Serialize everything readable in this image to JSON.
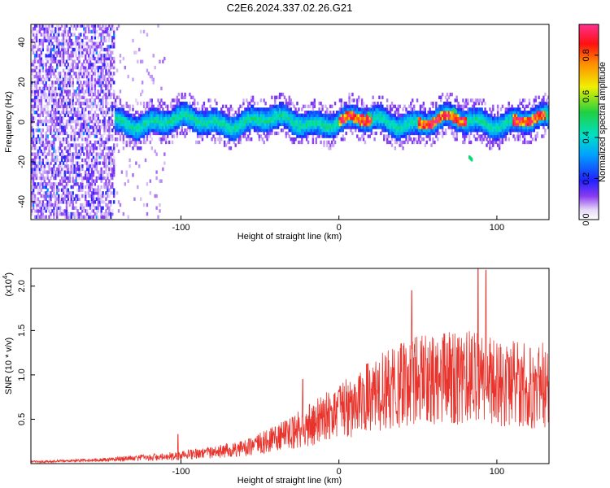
{
  "title": "C2E6.2024.337.02.26.G21",
  "chart_data": [
    {
      "type": "heatmap",
      "xlabel": "Height of straight line (km)",
      "ylabel": "Frequency (Hz)",
      "xlim": [
        -195,
        133
      ],
      "ylim": [
        -49,
        49
      ],
      "x_ticks": [
        -100,
        0,
        100
      ],
      "y_ticks": [
        -40,
        -20,
        0,
        20,
        40
      ],
      "colorbar": {
        "label": "Normalized spectral amplitude",
        "range": [
          0,
          0.95
        ],
        "ticks": [
          0.0,
          0.2,
          0.4,
          0.6,
          0.8
        ],
        "tick_labels": [
          "0.0",
          "0.2",
          "0.4",
          "0.6",
          "0.8"
        ]
      },
      "features": {
        "band_center_hz": 0,
        "band_start_km": -142,
        "band_halfwidth_hz": 6,
        "high_amp_regions_km": [
          [
            0,
            20
          ],
          [
            50,
            80
          ],
          [
            110,
            130
          ]
        ],
        "peak_freq_hz": [
          [
            18,
            4
          ],
          [
            72,
            6
          ],
          [
            82,
            -18
          ]
        ],
        "scatter_region_km": [
          -195,
          -142
        ]
      }
    },
    {
      "type": "line",
      "xlabel": "Height of straight line (km)",
      "ylabel": "SNR (10 * v/v)",
      "y_scale_label": "(x10",
      "y_scale_exp": "4",
      "xlim": [
        -195,
        133
      ],
      "ylim": [
        0,
        2.2
      ],
      "x_ticks": [
        -100,
        0,
        100
      ],
      "y_ticks": [
        0.5,
        1.0,
        1.5,
        2.0
      ],
      "y_tick_labels": [
        "0.5",
        "1.0",
        "1.5",
        "2.0"
      ],
      "series": [
        {
          "color": "#e8342c",
          "envelope_km": [
            -195,
            -150,
            -100,
            -60,
            -40,
            -20,
            0,
            20,
            40,
            60,
            80,
            100,
            133
          ],
          "envelope_mean": [
            0.02,
            0.04,
            0.09,
            0.17,
            0.28,
            0.42,
            0.6,
            0.75,
            0.9,
            0.95,
            0.98,
            0.9,
            0.88
          ],
          "spikes": [
            [
              -102,
              0.33
            ],
            [
              -23,
              0.95
            ],
            [
              46,
              1.95
            ],
            [
              88,
              2.2
            ],
            [
              93,
              2.18
            ],
            [
              121,
              1.3
            ]
          ]
        }
      ]
    }
  ]
}
